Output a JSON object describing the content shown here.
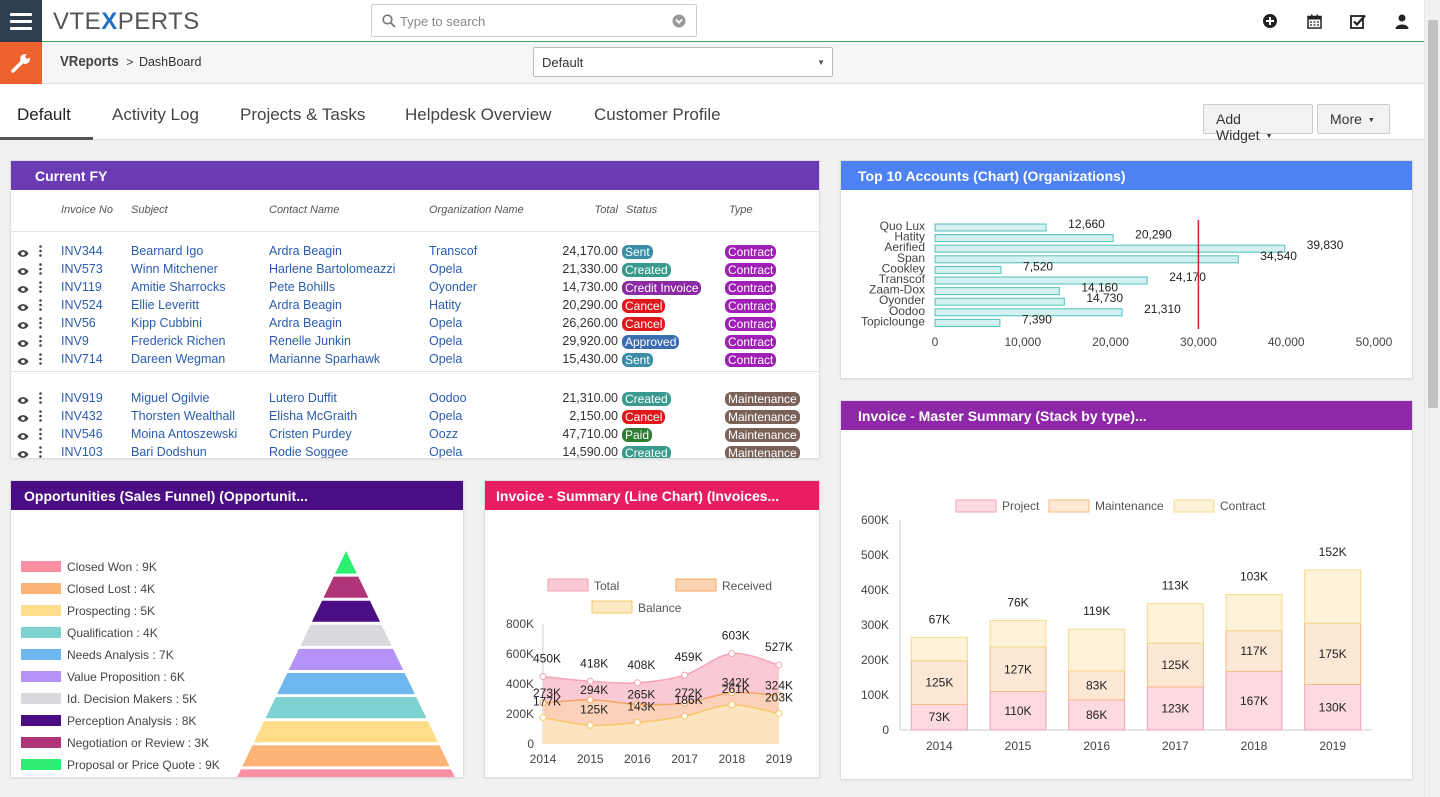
{
  "app": {
    "logo_left": "VTE",
    "logo_x": "X",
    "logo_right": "PERTS"
  },
  "search": {
    "placeholder": "Type to search"
  },
  "breadcrumb": {
    "module": "VReports",
    "separator": ">",
    "page": "DashBoard"
  },
  "view_select": {
    "value": "Default"
  },
  "tabs": [
    {
      "label": "Default",
      "active": true
    },
    {
      "label": "Activity Log",
      "active": false
    },
    {
      "label": "Projects & Tasks",
      "active": false
    },
    {
      "label": "Helpdesk Overview",
      "active": false
    },
    {
      "label": "Customer Profile",
      "active": false
    }
  ],
  "toolbar": {
    "add_widget_label": "Add Widget",
    "more_label": "More"
  },
  "colors": {
    "green": "#3cab55",
    "orange": "#f0622d",
    "navy": "#2d3e50",
    "purple": "#6a3bb3",
    "blue": "#4e82f2",
    "magenta": "#8e27a8",
    "dark_purple": "#4b0d83",
    "pink": "#e81d64"
  },
  "current_fy": {
    "title": "Current FY",
    "columns": [
      "Invoice No",
      "Subject",
      "Contact Name",
      "Organization Name",
      "Total",
      "Status",
      "Type"
    ],
    "groups": [
      {
        "rows": [
          {
            "invoice": "INV344",
            "subject": "Bearnard Igo",
            "contact": "Ardra Beagin",
            "org": "Transcof",
            "total": "24,170.00",
            "status": "Sent",
            "status_color": "#3a8ea6",
            "type": "Contract",
            "type_color": "#a020b5"
          },
          {
            "invoice": "INV573",
            "subject": "Winn Mitchener",
            "contact": "Harlene Bartolomeazzi",
            "org": "Opela",
            "total": "21,330.00",
            "status": "Created",
            "status_color": "#3a9a8e",
            "type": "Contract",
            "type_color": "#a020b5"
          },
          {
            "invoice": "INV119",
            "subject": "Amitie Sharrocks",
            "contact": "Pete Bohills",
            "org": "Oyonder",
            "total": "14,730.00",
            "status": "Credit Invoice",
            "status_color": "#8b2aa4",
            "type": "Contract",
            "type_color": "#a020b5"
          },
          {
            "invoice": "INV524",
            "subject": "Ellie Leveritt",
            "contact": "Ardra Beagin",
            "org": "Hatity",
            "total": "20,290.00",
            "status": "Cancel",
            "status_color": "#e0181b",
            "type": "Contract",
            "type_color": "#a020b5"
          },
          {
            "invoice": "INV56",
            "subject": "Kipp Cubbini",
            "contact": "Ardra Beagin",
            "org": "Opela",
            "total": "26,260.00",
            "status": "Cancel",
            "status_color": "#e0181b",
            "type": "Contract",
            "type_color": "#a020b5"
          },
          {
            "invoice": "INV9",
            "subject": "Frederick Richen",
            "contact": "Renelle Junkin",
            "org": "Opela",
            "total": "29,920.00",
            "status": "Approved",
            "status_color": "#3a6cb0",
            "type": "Contract",
            "type_color": "#a020b5"
          },
          {
            "invoice": "INV714",
            "subject": "Dareen Wegman",
            "contact": "Marianne Sparhawk",
            "org": "Opela",
            "total": "15,430.00",
            "status": "Sent",
            "status_color": "#3a8ea6",
            "type": "Contract",
            "type_color": "#a020b5"
          }
        ]
      },
      {
        "rows": [
          {
            "invoice": "INV919",
            "subject": "Miguel Ogilvie",
            "contact": "Lutero Duffit",
            "org": "Oodoo",
            "total": "21,310.00",
            "status": "Created",
            "status_color": "#3a9a8e",
            "type": "Maintenance",
            "type_color": "#7a6258"
          },
          {
            "invoice": "INV432",
            "subject": "Thorsten Wealthall",
            "contact": "Elisha McGraith",
            "org": "Opela",
            "total": "2,150.00",
            "status": "Cancel",
            "status_color": "#e0181b",
            "type": "Maintenance",
            "type_color": "#7a6258"
          },
          {
            "invoice": "INV546",
            "subject": "Moina Antoszewski",
            "contact": "Cristen Purdey",
            "org": "Oozz",
            "total": "47,710.00",
            "status": "Paid",
            "status_color": "#2e7d32",
            "type": "Maintenance",
            "type_color": "#7a6258"
          },
          {
            "invoice": "INV103",
            "subject": "Bari Dodshun",
            "contact": "Rodie Soggee",
            "org": "Opela",
            "total": "14,590.00",
            "status": "Created",
            "status_color": "#3a9a8e",
            "type": "Maintenance",
            "type_color": "#7a6258"
          }
        ]
      }
    ]
  },
  "chart_data": [
    {
      "id": "top10",
      "type": "bar",
      "orientation": "horizontal",
      "title": "Top 10 Accounts (Chart) (Organizations)",
      "categories": [
        "Quo Lux",
        "Hatity",
        "Aerified",
        "Span",
        "Cookley",
        "Transcof",
        "Zaam-Dox",
        "Oyonder",
        "Oodoo",
        "Topiclounge"
      ],
      "values": [
        12660,
        20290,
        39830,
        34540,
        7520,
        24170,
        14160,
        14730,
        21310,
        7390
      ],
      "value_labels": [
        "12,660",
        "20,290",
        "39,830",
        "34,540",
        "7,520",
        "24,170",
        "14,160",
        "14,730",
        "21,310",
        "7,390"
      ],
      "xlim": [
        0,
        50000
      ],
      "xticks": [
        "0",
        "10,000",
        "20,000",
        "30,000",
        "40,000",
        "50,000"
      ],
      "reference_line": 30000,
      "bar_color": "#d4f0ef",
      "bar_border": "#4fc1bd",
      "line_color": "#e02020"
    },
    {
      "id": "funnel",
      "type": "funnel",
      "title": "Opportunities (Sales Funnel) (Opportunit...",
      "stages": [
        {
          "name": "Closed Won",
          "value": 9,
          "label": "Closed Won : 9K",
          "color": "#fa8fa3"
        },
        {
          "name": "Closed Lost",
          "value": 4,
          "label": "Closed Lost : 4K",
          "color": "#fbb476"
        },
        {
          "name": "Prospecting",
          "value": 5,
          "label": "Prospecting : 5K",
          "color": "#fddd87"
        },
        {
          "name": "Qualification",
          "value": 4,
          "label": "Qualification : 4K",
          "color": "#7ed3d0"
        },
        {
          "name": "Needs Analysis",
          "value": 7,
          "label": "Needs Analysis : 7K",
          "color": "#6db8ee"
        },
        {
          "name": "Value Proposition",
          "value": 6,
          "label": "Value Proposition : 6K",
          "color": "#b592f7"
        },
        {
          "name": "Id. Decision Makers",
          "value": 5,
          "label": "Id. Decision Makers : 5K",
          "color": "#d9dadd"
        },
        {
          "name": "Perception Analysis",
          "value": 8,
          "label": "Perception Analysis : 8K",
          "color": "#4b0d83"
        },
        {
          "name": "Negotiation or Review",
          "value": 3,
          "label": "Negotiation or Review : 3K",
          "color": "#b03478"
        },
        {
          "name": "Proposal or Price Quote",
          "value": 9,
          "label": "Proposal or Price Quote : 9K",
          "color": "#2eef72"
        }
      ]
    },
    {
      "id": "invoice_line",
      "type": "area",
      "title": "Invoice - Summary (Line Chart) (Invoices...",
      "categories": [
        "2014",
        "2015",
        "2016",
        "2017",
        "2018",
        "2019"
      ],
      "series": [
        {
          "name": "Total",
          "values": [
            450,
            418,
            408,
            459,
            603,
            527
          ],
          "labels": [
            "450K",
            "418K",
            "408K",
            "459K",
            "603K",
            "527K"
          ],
          "color": "#f5a3b7",
          "fill": "#f9c9d4"
        },
        {
          "name": "Received",
          "values": [
            273,
            294,
            265,
            272,
            342,
            324
          ],
          "labels": [
            "273K",
            "294K",
            "265K",
            "272K",
            "342K",
            "324K"
          ],
          "color": "#f5a665",
          "fill": "#fbd3b0"
        },
        {
          "name": "Balance",
          "values": [
            177,
            125,
            143,
            186,
            261,
            203
          ],
          "labels": [
            "177K",
            "125K",
            "143K",
            "186K",
            "261K",
            "203K"
          ],
          "color": "#f5c86a",
          "fill": "#fde9c4"
        }
      ],
      "ylim": [
        0,
        800
      ],
      "yticks": [
        "0",
        "200K",
        "400K",
        "600K",
        "800K"
      ]
    },
    {
      "id": "invoice_stack",
      "type": "bar",
      "stacked": true,
      "title": "Invoice - Master Summary (Stack by type)...",
      "categories": [
        "2014",
        "2015",
        "2016",
        "2017",
        "2018",
        "2019"
      ],
      "series": [
        {
          "name": "Project",
          "values": [
            73,
            110,
            86,
            123,
            167,
            130
          ],
          "color": "#fdd9e1",
          "border": "#f5a3b7"
        },
        {
          "name": "Maintenance",
          "values": [
            125,
            127,
            83,
            125,
            117,
            175
          ],
          "color": "#fde8d5",
          "border": "#f5bb83"
        },
        {
          "name": "Contract",
          "values": [
            67,
            76,
            119,
            113,
            103,
            152
          ],
          "color": "#fef3d9",
          "border": "#f5d98a"
        }
      ],
      "segment_labels": [
        [
          "",
          "73K",
          "125K",
          "67K"
        ],
        [
          "",
          "110K",
          "127K",
          "76K"
        ],
        [
          "",
          "86K",
          "83K",
          "119K"
        ],
        [
          "",
          "123K",
          "125K",
          "113K"
        ],
        [
          "",
          "167K",
          "117K",
          "103K"
        ],
        [
          "",
          "130K",
          "175K",
          "152K"
        ]
      ],
      "ylim": [
        0,
        600
      ],
      "yticks": [
        "0",
        "100K",
        "200K",
        "300K",
        "400K",
        "500K",
        "600K"
      ]
    }
  ]
}
